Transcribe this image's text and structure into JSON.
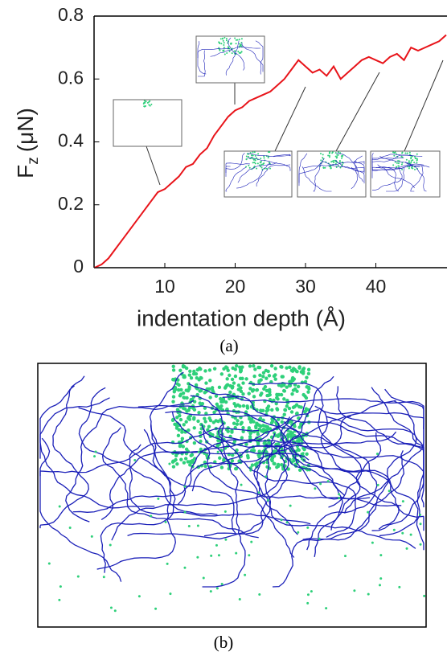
{
  "chart_data": {
    "type": "line",
    "ylabel": {
      "symbol": "F",
      "subscript": "z",
      "unit": "(μN)"
    },
    "xlabel": "indentation depth (Å)",
    "caption": "(a)",
    "x": [
      0,
      1,
      2,
      3,
      4,
      5,
      6,
      7,
      8,
      9,
      10,
      11,
      12,
      13,
      14,
      15,
      16,
      17,
      18,
      19,
      20,
      21,
      22,
      23,
      24,
      25,
      26,
      27,
      28,
      29,
      30,
      31,
      32,
      33,
      34,
      35,
      36,
      37,
      38,
      39,
      40,
      41,
      42,
      43,
      44,
      45,
      46,
      47,
      48,
      49,
      50
    ],
    "series": [
      {
        "color": "#e8141a",
        "values": [
          0,
          0.01,
          0.03,
          0.06,
          0.09,
          0.12,
          0.15,
          0.18,
          0.21,
          0.24,
          0.25,
          0.27,
          0.29,
          0.32,
          0.33,
          0.36,
          0.38,
          0.42,
          0.45,
          0.48,
          0.5,
          0.51,
          0.53,
          0.54,
          0.55,
          0.56,
          0.58,
          0.6,
          0.63,
          0.66,
          0.64,
          0.62,
          0.63,
          0.61,
          0.64,
          0.6,
          0.62,
          0.64,
          0.66,
          0.67,
          0.66,
          0.65,
          0.67,
          0.68,
          0.66,
          0.7,
          0.69,
          0.7,
          0.71,
          0.72,
          0.74
        ]
      }
    ],
    "xlim": [
      0,
      50
    ],
    "ylim": [
      0,
      0.8
    ],
    "xticks": [
      10,
      20,
      30,
      40
    ],
    "yticks": [
      0,
      0.2,
      0.4,
      0.6,
      0.8
    ]
  },
  "panel_b": {
    "caption": "(b)"
  }
}
